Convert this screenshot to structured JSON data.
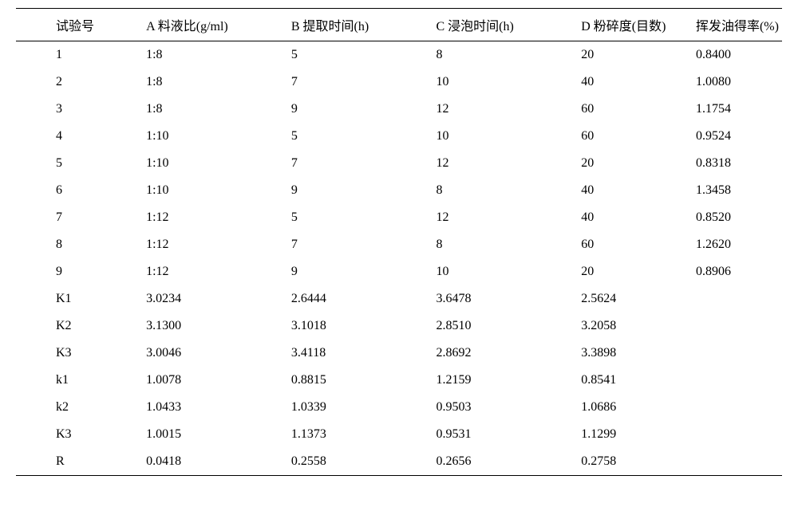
{
  "table": {
    "type": "table",
    "background_color": "#ffffff",
    "text_color": "#000000",
    "border_color": "#000000",
    "font_size": 16,
    "font_family": "SimSun",
    "columns": [
      "试验号",
      "A 料液比(g/ml)",
      "B 提取时间(h)",
      "C 浸泡时间(h)",
      "D 粉碎度(目数)",
      "挥发油得率(%)"
    ],
    "rows": [
      [
        "1",
        "1:8",
        "5",
        "8",
        "20",
        "0.8400"
      ],
      [
        "2",
        "1:8",
        "7",
        "10",
        "40",
        "1.0080"
      ],
      [
        "3",
        "1:8",
        "9",
        "12",
        "60",
        "1.1754"
      ],
      [
        "4",
        "1:10",
        "5",
        "10",
        "60",
        "0.9524"
      ],
      [
        "5",
        "1:10",
        "7",
        "12",
        "20",
        "0.8318"
      ],
      [
        "6",
        "1:10",
        "9",
        "8",
        "40",
        "1.3458"
      ],
      [
        "7",
        "1:12",
        "5",
        "12",
        "40",
        "0.8520"
      ],
      [
        "8",
        "1:12",
        "7",
        "8",
        "60",
        "1.2620"
      ],
      [
        "9",
        "1:12",
        "9",
        "10",
        "20",
        "0.8906"
      ],
      [
        "K1",
        "3.0234",
        "2.6444",
        "3.6478",
        "2.5624",
        ""
      ],
      [
        "K2",
        "3.1300",
        "3.1018",
        "2.8510",
        "3.2058",
        ""
      ],
      [
        "K3",
        "3.0046",
        "3.4118",
        "2.8692",
        "3.3898",
        ""
      ],
      [
        "k1",
        "1.0078",
        "0.8815",
        "1.2159",
        "0.8541",
        ""
      ],
      [
        "k2",
        "1.0433",
        "1.0339",
        "0.9503",
        "1.0686",
        ""
      ],
      [
        "K3",
        "1.0015",
        "1.1373",
        "0.9531",
        "1.1299",
        ""
      ],
      [
        "R",
        "0.0418",
        "0.2558",
        "0.2656",
        "0.2758",
        ""
      ]
    ]
  }
}
